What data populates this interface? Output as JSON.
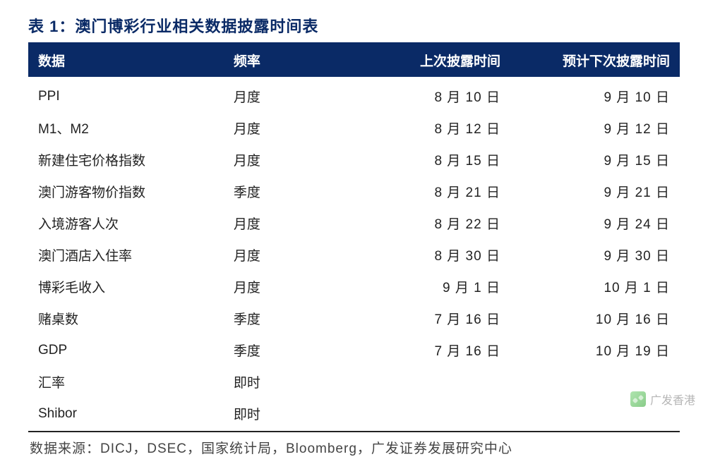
{
  "title": "表 1：澳门博彩行业相关数据披露时间表",
  "table": {
    "type": "table",
    "header_bg": "#0a2a66",
    "header_fg": "#ffffff",
    "rule_color_top": "#0a2a66",
    "rule_color_bottom": "#222222",
    "body_fg": "#222222",
    "font_size_pt": 14,
    "columns": [
      {
        "key": "data",
        "label": "数据",
        "align": "left",
        "width_pct": 30
      },
      {
        "key": "freq",
        "label": "频率",
        "align": "left",
        "width_pct": 18
      },
      {
        "key": "last",
        "label": "上次披露时间",
        "align": "right",
        "width_pct": 26
      },
      {
        "key": "next",
        "label": "预计下次披露时间",
        "align": "right",
        "width_pct": 26
      }
    ],
    "rows": [
      {
        "data": "PPI",
        "freq": "月度",
        "last": "8 月 10 日",
        "next": "9 月 10 日"
      },
      {
        "data": "M1、M2",
        "freq": "月度",
        "last": "8 月 12 日",
        "next": "9 月 12 日"
      },
      {
        "data": "新建住宅价格指数",
        "freq": "月度",
        "last": "8 月 15 日",
        "next": "9 月 15 日"
      },
      {
        "data": "澳门游客物价指数",
        "freq": "季度",
        "last": "8 月 21 日",
        "next": "9 月 21 日"
      },
      {
        "data": "入境游客人次",
        "freq": "月度",
        "last": "8 月 22 日",
        "next": "9 月 24 日"
      },
      {
        "data": "澳门酒店入住率",
        "freq": "月度",
        "last": "8 月 30 日",
        "next": "9 月 30 日"
      },
      {
        "data": "博彩毛收入",
        "freq": "月度",
        "last": "9 月 1 日",
        "next": "10 月 1 日"
      },
      {
        "data": "赌桌数",
        "freq": "季度",
        "last": "7 月 16 日",
        "next": "10 月 16 日"
      },
      {
        "data": "GDP",
        "freq": "季度",
        "last": "7 月 16 日",
        "next": "10 月 19 日"
      },
      {
        "data": "汇率",
        "freq": "即时",
        "last": "",
        "next": ""
      },
      {
        "data": "Shibor",
        "freq": "即时",
        "last": "",
        "next": ""
      }
    ]
  },
  "source_label": "数据来源：DICJ，DSEC，国家统计局，Bloomberg，广发证券发展研究中心",
  "watermark": {
    "icon": "wechat-icon",
    "text": "广发香港"
  },
  "colors": {
    "title_color": "#0a2a66",
    "background": "#ffffff",
    "body_text": "#222222",
    "source_text": "#444444",
    "watermark_text": "#7a7a7a"
  }
}
